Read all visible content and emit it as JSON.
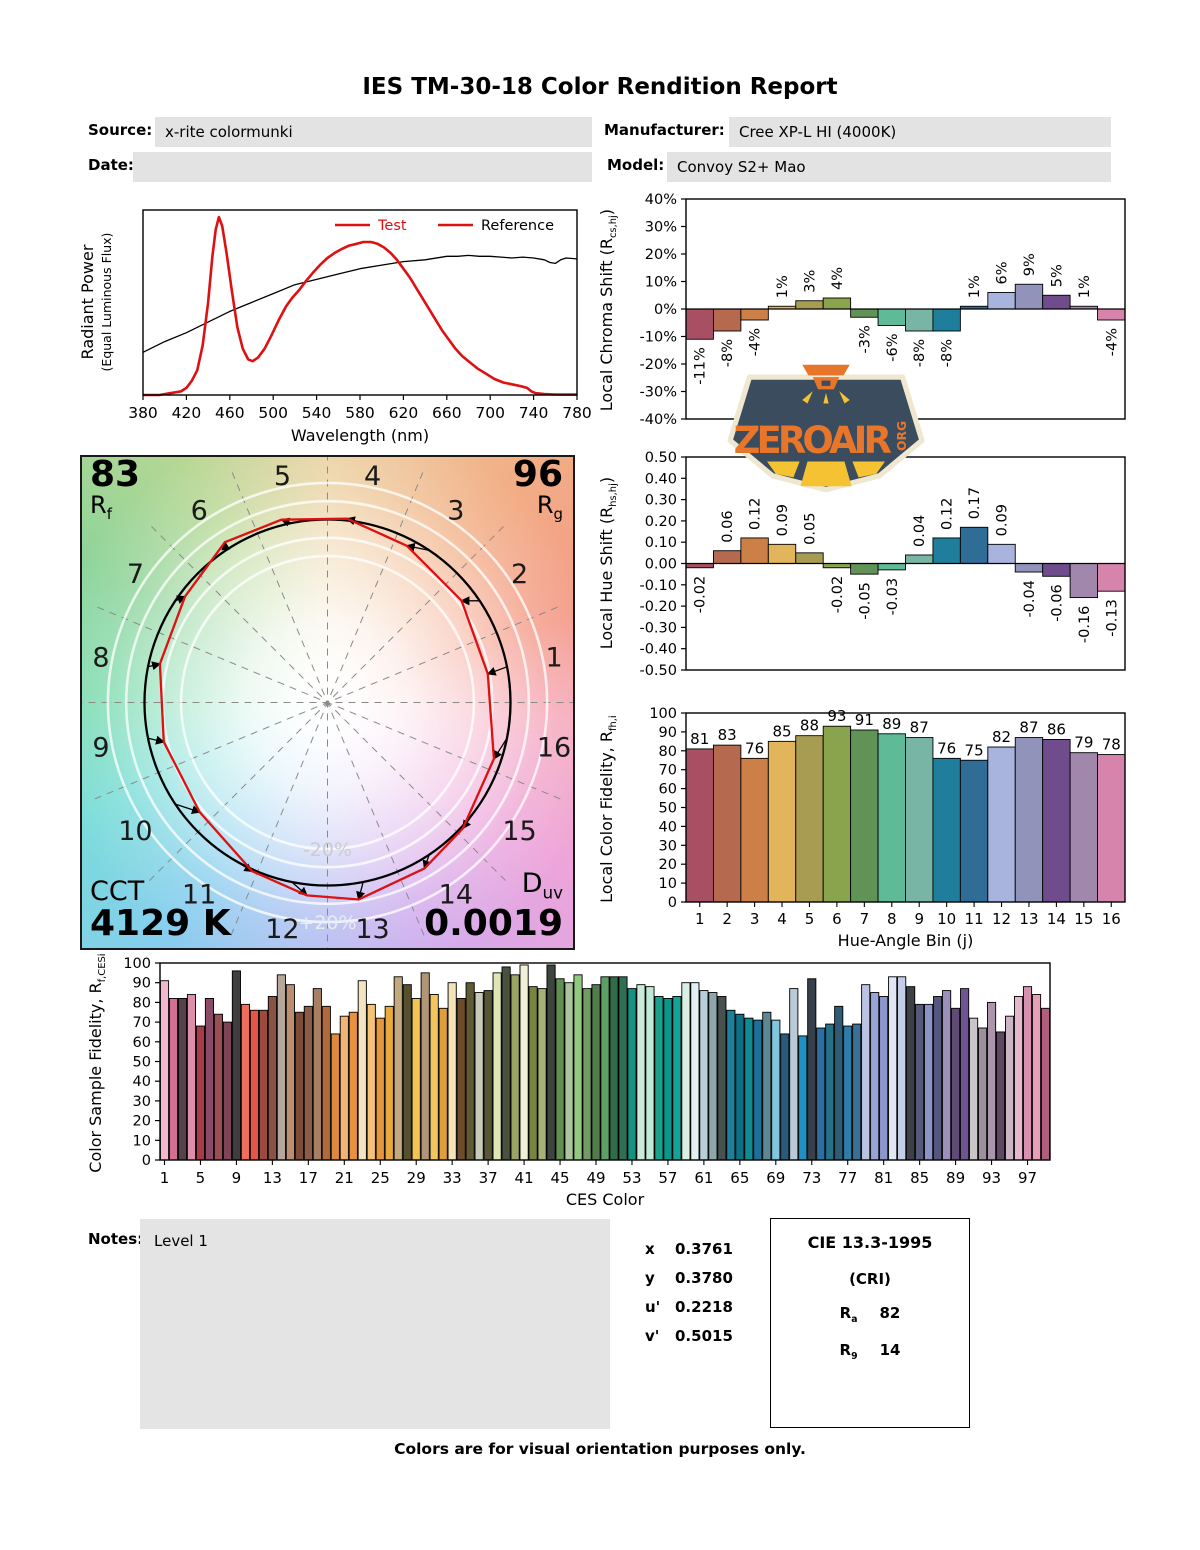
{
  "title": "IES TM-30-18 Color Rendition Report",
  "header": {
    "source_label": "Source:",
    "source_value": "x-rite colormunki",
    "manufacturer_label": "Manufacturer:",
    "manufacturer_value": "Cree XP-L HI (4000K)",
    "date_label": "Date:",
    "date_value": "",
    "model_label": "Model:",
    "model_value": "Convoy S2+ Mao"
  },
  "watermark": {
    "text": "ZEROAIR",
    "org": "ORG"
  },
  "cvg": {
    "rf_value": "83",
    "rf_label": "R_{f}",
    "rg_value": "96",
    "rg_label": "R_{g}",
    "cct_label": "CCT",
    "cct_value": "4129 K",
    "duv_label": "D_{uv}",
    "duv_value": "0.0019",
    "inner_ring_label": "-20%",
    "outer_ring_label": "+20%",
    "bin_numbers": [
      "1",
      "2",
      "3",
      "4",
      "5",
      "6",
      "7",
      "8",
      "9",
      "10",
      "11",
      "12",
      "13",
      "14",
      "15",
      "16"
    ]
  },
  "notes": {
    "label": "Notes:",
    "value": "Level 1"
  },
  "chromaticity": [
    {
      "label": "x",
      "value": "0.3761"
    },
    {
      "label": "y",
      "value": "0.3780"
    },
    {
      "label": "u'",
      "value": "0.2218"
    },
    {
      "label": "v'",
      "value": "0.5015"
    }
  ],
  "cri_box": {
    "title": "CIE 13.3-1995",
    "subtitle": "(CRI)",
    "rows": [
      {
        "label": "R_{a}",
        "value": "82"
      },
      {
        "label": "R_{9}",
        "value": "14"
      }
    ]
  },
  "footer": "Colors are for visual orientation purposes only.",
  "bin_colors": [
    "#a84f63",
    "#b5694f",
    "#cc7f47",
    "#e2b45c",
    "#a89c52",
    "#8aa44e",
    "#619356",
    "#5fbb97",
    "#79b5a5",
    "#1f7e9b",
    "#2f6c96",
    "#a9b4de",
    "#9193bb",
    "#6f4d8c",
    "#a287ad",
    "#d684ab"
  ],
  "chart_data": [
    {
      "id": "spd",
      "type": "line",
      "ylabel": "Radiant Power",
      "ylabel2": "(Equal Luminous Flux)",
      "xlabel": "Wavelength (nm)",
      "xlim": [
        380,
        780
      ],
      "ylim": [
        0,
        104
      ],
      "x_ticks": [
        380,
        420,
        460,
        500,
        540,
        580,
        620,
        660,
        700,
        740,
        780
      ],
      "legend": [
        {
          "name": "Test",
          "swatch_color": "#dd1111",
          "text_color": "#dd1111"
        },
        {
          "name": "Reference",
          "swatch_color": "#dd1111",
          "text_color": "#000000"
        }
      ],
      "series": [
        {
          "name": "Test",
          "color": "#dd1111",
          "width": 2.6,
          "x": [
            380,
            395,
            405,
            415,
            420,
            425,
            430,
            435,
            440,
            444,
            447,
            450,
            453,
            457,
            462,
            467,
            472,
            477,
            481,
            486,
            492,
            498,
            505,
            512,
            518,
            524,
            530,
            537,
            543,
            550,
            557,
            563,
            570,
            577,
            583,
            590,
            596,
            602,
            608,
            614,
            620,
            626,
            632,
            638,
            644,
            650,
            656,
            662,
            668,
            674,
            680,
            688,
            696,
            704,
            712,
            720,
            728,
            734,
            738,
            742,
            750,
            760,
            780
          ],
          "y": [
            0,
            0,
            1,
            2,
            4,
            8,
            14,
            28,
            52,
            78,
            93,
            100,
            95,
            80,
            58,
            38,
            26,
            20,
            19,
            21,
            26,
            33,
            42,
            50,
            55,
            59,
            64,
            69,
            73,
            77,
            80,
            82,
            84,
            85,
            86,
            86,
            85,
            83,
            80,
            76,
            71,
            66,
            60,
            54,
            48,
            42,
            36,
            31,
            26,
            22,
            19,
            15,
            12,
            9,
            7,
            6,
            5,
            4,
            2,
            1,
            0.5,
            0.3,
            0.2
          ]
        },
        {
          "name": "Reference",
          "color": "#000000",
          "width": 1.3,
          "x": [
            380,
            400,
            420,
            440,
            460,
            480,
            500,
            520,
            540,
            560,
            580,
            600,
            620,
            640,
            660,
            670,
            680,
            690,
            700,
            710,
            720,
            730,
            740,
            750,
            755,
            760,
            765,
            770,
            780
          ],
          "y": [
            24,
            30,
            35,
            41,
            47,
            52,
            57,
            62,
            65,
            68,
            71,
            73,
            75,
            76,
            78,
            78,
            78.5,
            78,
            78,
            77.5,
            77,
            77.5,
            77,
            76,
            74.5,
            74,
            76,
            77,
            76.5
          ]
        }
      ]
    },
    {
      "id": "chroma_shift",
      "type": "bar",
      "ylabel": "Local Chroma Shift (R_{cs,hj})",
      "ylim": [
        -40,
        40
      ],
      "ytick_step": 10,
      "ytick_format": "percent",
      "label_style": "rotated",
      "values": [
        -11,
        -8,
        -4,
        1,
        3,
        4,
        -3,
        -6,
        -8,
        -8,
        1,
        6,
        9,
        5,
        1,
        -4
      ],
      "bar_labels": [
        "-11%",
        "-8%",
        "-4%",
        "1%",
        "3%",
        "4%",
        "-3%",
        "-6%",
        "-8%",
        "-8%",
        "1%",
        "6%",
        "9%",
        "5%",
        "1%",
        "-4%"
      ]
    },
    {
      "id": "hue_shift",
      "type": "bar",
      "ylabel": "Local Hue Shift (R_{hs,hj})",
      "ylim": [
        -0.5,
        0.5
      ],
      "ytick_step": 0.1,
      "ytick_format": "fixed2",
      "label_style": "rotated",
      "values": [
        -0.02,
        0.06,
        0.12,
        0.09,
        0.05,
        -0.02,
        -0.05,
        -0.03,
        0.04,
        0.12,
        0.17,
        0.09,
        -0.04,
        -0.06,
        -0.16,
        -0.13
      ],
      "bar_labels": [
        "-0.02",
        "0.06",
        "0.12",
        "0.09",
        "0.05",
        "-0.02",
        "-0.05",
        "-0.03",
        "0.04",
        "0.12",
        "0.17",
        "0.09",
        "-0.04",
        "-0.06",
        "-0.16",
        "-0.13"
      ]
    },
    {
      "id": "local_fidelity",
      "type": "bar",
      "ylabel": "Local Color Fidelity, R_{fh,i}",
      "xlabel": "Hue-Angle Bin (j)",
      "ylim": [
        0,
        100
      ],
      "ytick_step": 10,
      "ytick_format": "int",
      "label_style": "horizontal",
      "values": [
        81,
        83,
        76,
        85,
        88,
        93,
        91,
        89,
        87,
        76,
        75,
        82,
        87,
        86,
        79,
        78
      ],
      "bar_labels": [
        "81",
        "83",
        "76",
        "85",
        "88",
        "93",
        "91",
        "89",
        "87",
        "76",
        "75",
        "82",
        "87",
        "86",
        "79",
        "78"
      ],
      "x_tick_labels": [
        "1",
        "2",
        "3",
        "4",
        "5",
        "6",
        "7",
        "8",
        "9",
        "10",
        "11",
        "12",
        "13",
        "14",
        "15",
        "16"
      ]
    },
    {
      "id": "ces",
      "type": "bar",
      "ylabel": "Color Sample Fidelity, R_{f,CESi}",
      "xlabel": "CES Color",
      "ylim": [
        0,
        100
      ],
      "ytick_step": 10,
      "ytick_format": "int",
      "x_tick_start": 1,
      "x_tick_every": 4,
      "values": [
        91,
        82,
        82,
        84,
        68,
        82,
        74,
        70,
        96,
        79,
        76,
        76,
        83,
        94,
        89,
        75,
        78,
        87,
        78,
        64,
        73,
        75,
        91,
        79,
        72,
        78,
        93,
        89,
        82,
        95,
        84,
        77,
        90,
        82,
        90,
        85,
        86,
        95,
        98,
        94,
        99,
        88,
        87,
        99,
        92,
        90,
        94,
        87,
        89,
        93,
        93,
        93,
        87,
        89,
        88,
        83,
        82,
        83,
        90,
        90,
        86,
        85,
        83,
        76,
        74,
        72,
        71,
        75,
        71,
        64,
        87,
        63,
        92,
        67,
        69,
        78,
        68,
        69,
        89,
        85,
        83,
        93,
        93,
        88,
        79,
        79,
        83,
        86,
        77,
        87,
        72,
        67,
        80,
        65,
        73,
        83,
        88,
        84,
        77
      ],
      "colors": [
        "#f2b9ce",
        "#d27093",
        "#55434b",
        "#dd8fa9",
        "#a63c47",
        "#8a4a68",
        "#9c4f52",
        "#7d4456",
        "#3f3d40",
        "#ef6f5e",
        "#e2574a",
        "#9c4a3e",
        "#8a5242",
        "#b5a79c",
        "#bb8e71",
        "#7c4c37",
        "#8c5c49",
        "#a87f63",
        "#b06a3c",
        "#dc8a3e",
        "#f0b478",
        "#e89140",
        "#f4e4c2",
        "#f6c276",
        "#e8963e",
        "#eaa93e",
        "#c2a97e",
        "#57502f",
        "#f4c452",
        "#b09677",
        "#f2c55e",
        "#de9f3b",
        "#f4e3ba",
        "#6d4c2b",
        "#5f5c35",
        "#c8cbb9",
        "#585637",
        "#e0e5b4",
        "#49523f",
        "#9aa565",
        "#eff0d6",
        "#78853e",
        "#a6b176",
        "#3e443e",
        "#609050",
        "#abc69c",
        "#92c981",
        "#719d64",
        "#527c4c",
        "#5ca065",
        "#2f6c47",
        "#316f55",
        "#159182",
        "#c8ebd9",
        "#c1e9d8",
        "#1aa18d",
        "#0d958a",
        "#13a497",
        "#daf0e5",
        "#e2f0f1",
        "#b8cedb",
        "#8fa7aa",
        "#465150",
        "#1d809a",
        "#106f85",
        "#0f8b91",
        "#1e709b",
        "#5e8791",
        "#81c5de",
        "#285b79",
        "#bacad7",
        "#2090c5",
        "#38414b",
        "#2c6da4",
        "#267088",
        "#305b75",
        "#2e7caa",
        "#3b6f95",
        "#bac3e3",
        "#98a4d4",
        "#8c98cc",
        "#e0e7f3",
        "#c4cde9",
        "#3d4047",
        "#575978",
        "#8b93c5",
        "#56577f",
        "#9b90b9",
        "#5f4b76",
        "#6e5492",
        "#cac5c7",
        "#9c909c",
        "#ac95ac",
        "#5e4761",
        "#ccb4c4",
        "#e4b8cd",
        "#d790af",
        "#e8a0b9",
        "#b15d7d"
      ]
    },
    {
      "id": "cvg",
      "type": "color-vector-graphic",
      "rf": 83,
      "rg": 96,
      "cct_K": 4129,
      "duv": 0.0019,
      "reference_circle": 1.0,
      "ring_levels_pct": [
        -20,
        -10,
        10,
        20
      ]
    }
  ]
}
